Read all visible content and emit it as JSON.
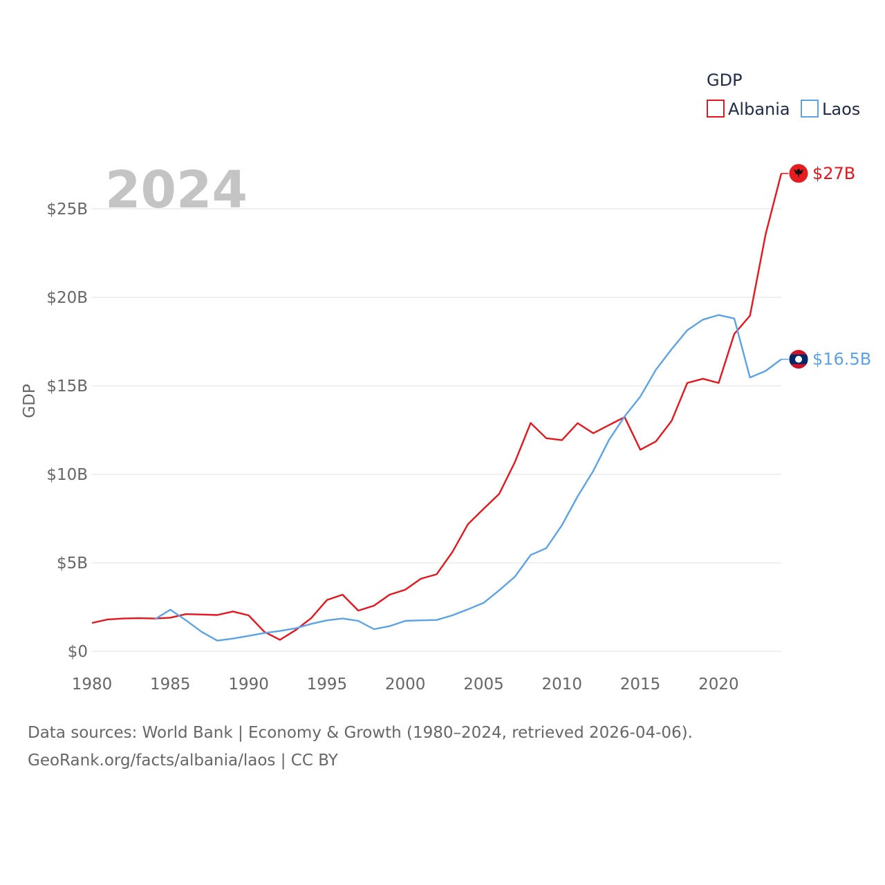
{
  "chart_data": {
    "type": "line",
    "title": "GDP",
    "year_label": "2024",
    "ylabel": "GDP",
    "xlabel": "",
    "xlim": [
      1980,
      2024
    ],
    "ylim": [
      0,
      27
    ],
    "x_ticks": [
      1980,
      1985,
      1990,
      1995,
      2000,
      2005,
      2010,
      2015,
      2020
    ],
    "x_tick_labels": [
      "1980",
      "1985",
      "1990",
      "1995",
      "2000",
      "2005",
      "2010",
      "2015",
      "2020"
    ],
    "y_ticks": [
      0,
      5,
      10,
      15,
      20,
      25
    ],
    "y_tick_labels": [
      "$0",
      "$5B",
      "$10B",
      "$15B",
      "$20B",
      "$25B"
    ],
    "grid": true,
    "legend_position": "top-right",
    "series": [
      {
        "name": "Albania",
        "color": "#e8141b",
        "end_label": "$27B",
        "flag_icon": "albania-flag-icon",
        "x": [
          1980,
          1981,
          1982,
          1983,
          1984,
          1985,
          1986,
          1987,
          1988,
          1989,
          1990,
          1991,
          1992,
          1993,
          1994,
          1995,
          1996,
          1997,
          1998,
          1999,
          2000,
          2001,
          2002,
          2003,
          2004,
          2005,
          2006,
          2007,
          2008,
          2009,
          2010,
          2011,
          2012,
          2013,
          2014,
          2015,
          2016,
          2017,
          2018,
          2019,
          2020,
          2021,
          2022,
          2023,
          2024
        ],
        "values": [
          1.6,
          1.8,
          1.85,
          1.87,
          1.85,
          1.9,
          2.1,
          2.08,
          2.05,
          2.25,
          2.03,
          1.1,
          0.65,
          1.2,
          1.88,
          2.9,
          3.2,
          2.3,
          2.58,
          3.2,
          3.48,
          4.1,
          4.35,
          5.6,
          7.18,
          8.05,
          8.9,
          10.7,
          12.9,
          12.04,
          11.93,
          12.89,
          12.32,
          12.78,
          13.23,
          11.39,
          11.86,
          13.02,
          15.16,
          15.4,
          15.16,
          17.93,
          18.96,
          23.55,
          27.0
        ]
      },
      {
        "name": "Laos",
        "color": "#5ba3e6",
        "end_label": "$16.5B",
        "flag_icon": "laos-flag-icon",
        "x": [
          1984,
          1985,
          1986,
          1987,
          1988,
          1989,
          1990,
          1991,
          1992,
          1993,
          1994,
          1995,
          1996,
          1997,
          1998,
          1999,
          2000,
          2001,
          2002,
          2003,
          2004,
          2005,
          2006,
          2007,
          2008,
          2009,
          2010,
          2011,
          2012,
          2013,
          2014,
          2015,
          2016,
          2017,
          2018,
          2019,
          2020,
          2021,
          2022,
          2023,
          2024
        ],
        "values": [
          1.8,
          2.35,
          1.75,
          1.1,
          0.6,
          0.72,
          0.87,
          1.03,
          1.15,
          1.3,
          1.55,
          1.75,
          1.85,
          1.72,
          1.25,
          1.42,
          1.72,
          1.75,
          1.77,
          2.03,
          2.37,
          2.74,
          3.45,
          4.22,
          5.44,
          5.83,
          7.13,
          8.75,
          10.19,
          11.94,
          13.27,
          14.39,
          15.91,
          17.07,
          18.14,
          18.74,
          19.0,
          18.8,
          15.47,
          15.84,
          16.5
        ]
      }
    ]
  },
  "footer": {
    "line1": "Data sources: World Bank | Economy & Growth (1980–2024, retrieved 2026-04-06).",
    "line2": "GeoRank.org/facts/albania/laos | CC BY"
  }
}
